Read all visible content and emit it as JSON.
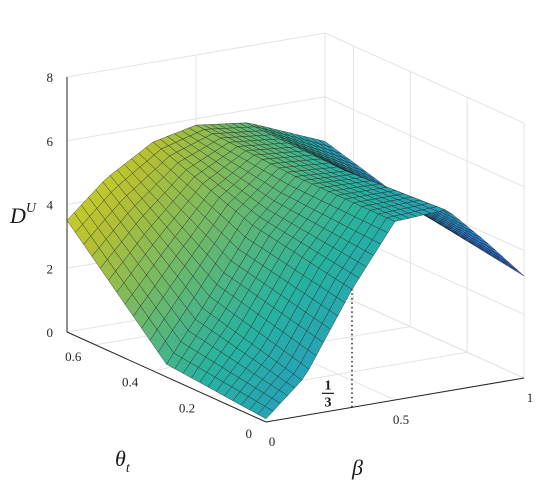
{
  "chart_data": {
    "type": "surface",
    "title": "",
    "xlabel": "β",
    "ylabel": "θ_t",
    "zlabel": "D^U",
    "xlim": [
      0,
      1
    ],
    "ylim": [
      0,
      0.7
    ],
    "zlim": [
      0,
      8
    ],
    "x_ticks": [
      "0",
      "0.5",
      "1"
    ],
    "y_ticks": [
      "0",
      "0.2",
      "0.4",
      "0.6"
    ],
    "z_ticks": [
      "0",
      "2",
      "4",
      "6",
      "8"
    ],
    "grid": true,
    "colormap": "parula",
    "annotation": {
      "text_numerator": "1",
      "text_denominator": "3",
      "x": 0.3333
    },
    "surface_samples": {
      "beta": [
        0,
        0.15,
        0.3333,
        0.5,
        0.7,
        0.85,
        1
      ],
      "theta_t": [
        0,
        0.35,
        0.7
      ],
      "D": [
        [
          0.1,
          1.2,
          3.7,
          5.6,
          5.7,
          4.5,
          3.2
        ],
        [
          0.4,
          2.1,
          4.3,
          5.6,
          5.5,
          4.6,
          3.7
        ],
        [
          3.5,
          4.6,
          5.5,
          5.8,
          5.6,
          5.1,
          4.6
        ]
      ]
    }
  },
  "labels": {
    "z_axis": "D",
    "z_sup": "U",
    "y_axis": "θ",
    "y_sub": "t",
    "x_axis": "β"
  }
}
